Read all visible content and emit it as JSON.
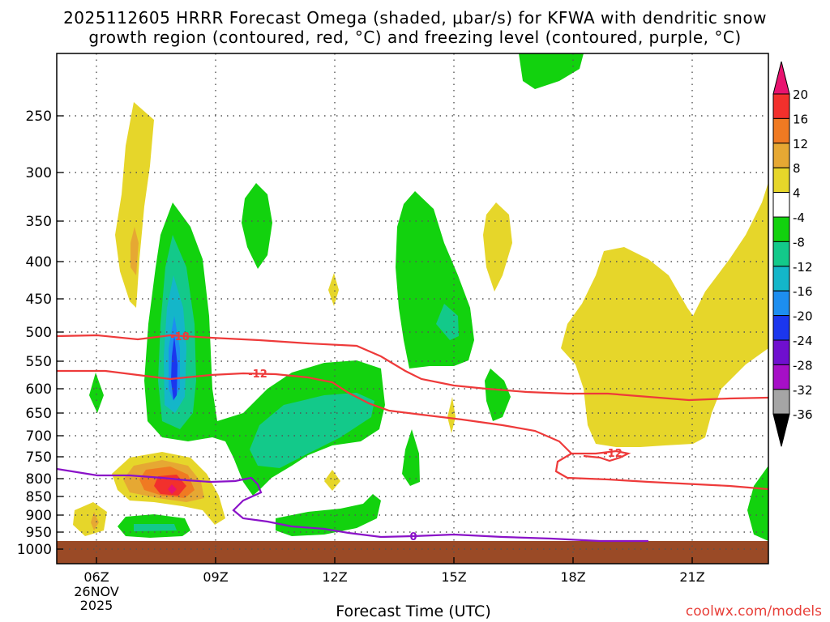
{
  "title_line1": "2025112605 HRRR Forecast Omega (shaded, μbar/s) for KFWA with dendritic snow",
  "title_line2": "growth region (contoured, red, °C) and freezing level (contoured, purple, °C)",
  "credit": "coolwx.com/models",
  "chart_data": {
    "type": "contour",
    "xlabel": "Forecast Time (UTC)",
    "x_ticks": [
      "06Z",
      "09Z",
      "12Z",
      "15Z",
      "18Z",
      "21Z"
    ],
    "x_date_label": [
      "26NOV",
      "2025"
    ],
    "y_ticks": [
      250,
      300,
      350,
      400,
      450,
      500,
      550,
      600,
      650,
      700,
      750,
      800,
      850,
      900,
      950,
      1000
    ],
    "y_scale": "inverted pressure",
    "grid": "dotted",
    "colorbar": {
      "labels": [
        "20",
        "16",
        "12",
        "8",
        "4",
        "-4",
        "-8",
        "-12",
        "-16",
        "-20",
        "-24",
        "-28",
        "-32",
        "-36"
      ],
      "colors": [
        "#e8136f",
        "#f2302c",
        "#f07a22",
        "#e6a833",
        "#e6d62a",
        "#ffffff",
        "#12d20e",
        "#13c98a",
        "#14b6c9",
        "#1d8ef0",
        "#1b36ee",
        "#6f0fcf",
        "#a60fc7",
        "#a5a5a5",
        "#000000"
      ]
    },
    "contours": [
      {
        "label": "-18",
        "color": "#ee3a3a",
        "units": "°C"
      },
      {
        "label": "-12",
        "color": "#ee3a3a",
        "units": "°C"
      },
      {
        "label": "-12",
        "color": "#ee3a3a",
        "units": "°C"
      },
      {
        "label": "0",
        "color": "#8a12c8",
        "units": "°C"
      }
    ],
    "colors": {
      "terrain": "#9a4a26",
      "green": "#12d20e",
      "yellow": "#e6d62a"
    }
  }
}
